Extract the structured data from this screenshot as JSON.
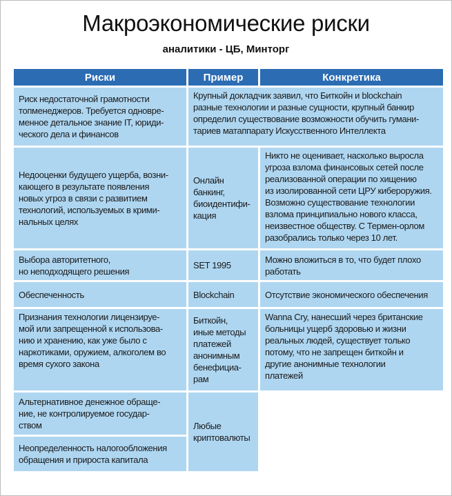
{
  "header": {
    "title": "Макроэкономические риски",
    "subtitle": "аналитики - ЦБ, Минторг"
  },
  "table": {
    "columns": [
      "Риски",
      "Пример",
      "Конкретика"
    ],
    "rows": [
      {
        "cells": [
          {
            "lines": [
              "Риск недостаточной грамотности",
              "топменеджеров. Требуется одновре-",
              "менное детальное знание IT, юриди-",
              "ческого дела и финансов"
            ]
          },
          {
            "lines": [
              "Крупный докладчик заявил, что Биткойн и blockchain",
              "разные технологии и разные сущности, крупный банкир",
              "определил существование возможности обучить гумани-",
              "тариев матаппарату Искусственного Интеллекта"
            ]
          }
        ]
      },
      {
        "cells": [
          {
            "lines": [
              "Недооценки будущего ущерба, возни-",
              "кающего в результате появления",
              "новых угроз в связи с развитием",
              "технологий, используемых в крими-",
              "нальных целях"
            ]
          },
          {
            "lines": [
              "Онлайн",
              "банкинг,",
              "биоидентифи-",
              "кация"
            ]
          },
          {
            "lines": [
              "Никто не оценивает, насколько выросла",
              "угроза взлома финансовых сетей после",
              "реализованной операции по хищению",
              "из изолированной сети ЦРУ кибероружия.",
              "Возможно существование технологии",
              "взлома принципиально нового класса,",
              "неизвестное обществу. С Термен-орлом",
              "разобрались только через 10 лет."
            ]
          }
        ]
      },
      {
        "cells": [
          {
            "lines": [
              "Выбора авторитетного,",
              "но неподходящего решения"
            ]
          },
          {
            "lines": [
              "SET 1995"
            ]
          },
          {
            "lines": [
              "Можно вложиться в то, что будет плохо",
              "работать"
            ]
          }
        ]
      },
      {
        "cells": [
          {
            "lines": [
              "Обеспеченность"
            ]
          },
          {
            "lines": [
              "Blockchain"
            ]
          },
          {
            "lines": [
              "Отсутствие экономического обеспечения"
            ]
          }
        ]
      },
      {
        "cells": [
          {
            "lines": [
              "Признания технологии лицензируе-",
              "мой или запрещенной к использова-",
              "нию и хранению, как уже было с",
              "наркотиками, оружием, алкоголем во",
              "время сухого закона"
            ]
          },
          {
            "lines": [
              "Биткойн,",
              "иные методы",
              "платежей",
              "анонимным",
              "бенефициа-",
              "рам"
            ]
          },
          {
            "lines": [
              "Wanna Cry, нанесший через британские",
              "больницы ущерб здоровью и жизни",
              "реальных людей, существует только",
              "потому, что не запрещен биткойн и",
              "другие анонимные технологии",
              "платежей"
            ]
          }
        ]
      },
      {
        "cells": [
          {
            "lines": [
              "Альтернативное денежное обраще-",
              "ние, не контролируемое государ-",
              "ством"
            ]
          },
          {
            "lines": [
              "Любые",
              "криптовалюты"
            ]
          }
        ]
      },
      {
        "cells": [
          {
            "lines": [
              "Неопределенность налогообложения",
              "обращения и прироста капитала"
            ]
          }
        ]
      }
    ]
  }
}
